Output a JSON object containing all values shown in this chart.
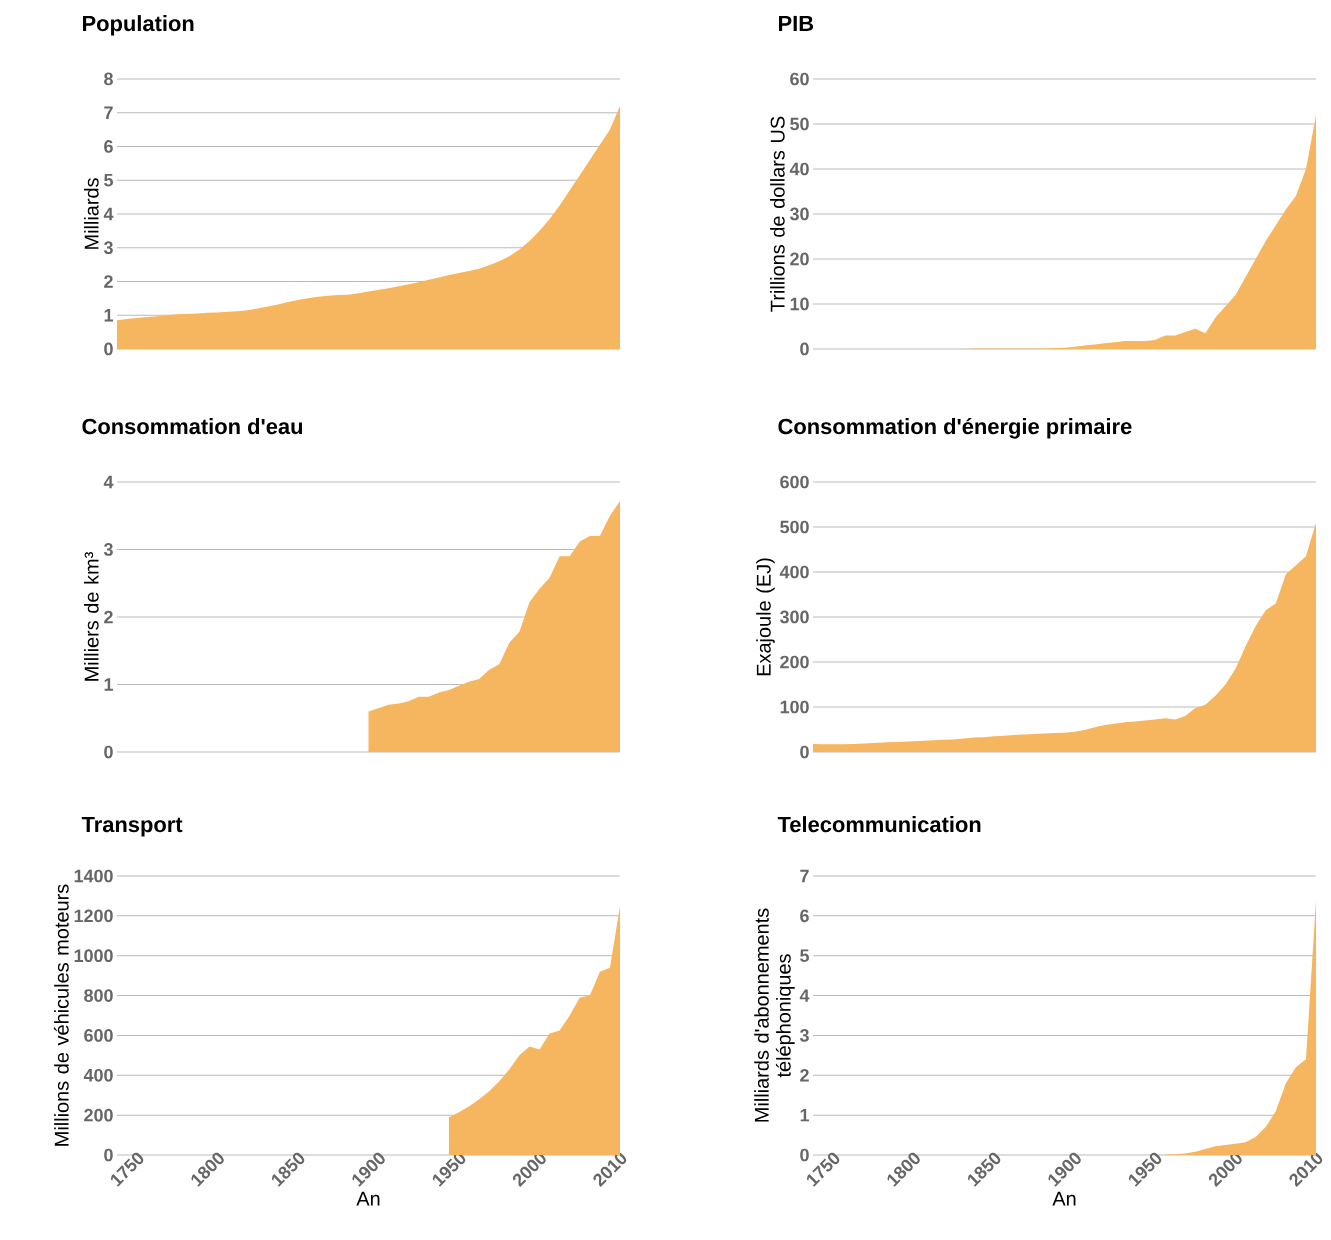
{
  "chart_data": [
    {
      "type": "area",
      "title": "Population",
      "ylabel": "Milliards",
      "tick_labels": "y",
      "grid": "y",
      "color": "#f6b55f",
      "ylim": [
        0,
        8
      ],
      "yticks": [
        0,
        1,
        2,
        3,
        4,
        5,
        6,
        7,
        8
      ],
      "categories": [
        null,
        "1750",
        null,
        null,
        null,
        null,
        null,
        null,
        null,
        "1800",
        null,
        null,
        null,
        null,
        null,
        null,
        null,
        "1850",
        null,
        null,
        null,
        null,
        null,
        null,
        null,
        "1900",
        null,
        null,
        null,
        null,
        null,
        null,
        null,
        "1950",
        null,
        null,
        null,
        null,
        null,
        null,
        null,
        "2000",
        null,
        null,
        null,
        null,
        null,
        null,
        null,
        "2010",
        null
      ],
      "values": [
        0.85,
        0.89,
        0.92,
        0.95,
        0.97,
        1.0,
        1.03,
        1.04,
        1.05,
        1.07,
        1.08,
        1.1,
        1.12,
        1.15,
        1.2,
        1.26,
        1.32,
        1.39,
        1.45,
        1.5,
        1.55,
        1.58,
        1.6,
        1.61,
        1.65,
        1.7,
        1.75,
        1.8,
        1.86,
        1.92,
        1.98,
        2.05,
        2.12,
        2.19,
        2.25,
        2.31,
        2.38,
        2.48,
        2.6,
        2.75,
        2.95,
        3.2,
        3.5,
        3.85,
        4.25,
        4.7,
        5.15,
        5.6,
        6.05,
        6.5,
        7.2
      ]
    },
    {
      "type": "area",
      "title": "PIB",
      "ylabel": "Trillions de dollars US",
      "tick_labels": "y",
      "grid": "y",
      "color": "#f6b55f",
      "ylim": [
        0,
        60
      ],
      "yticks": [
        0,
        10,
        20,
        30,
        40,
        50,
        60
      ],
      "categories": [
        null,
        "1750",
        null,
        null,
        null,
        null,
        null,
        null,
        null,
        "1800",
        null,
        null,
        null,
        null,
        null,
        null,
        null,
        "1850",
        null,
        null,
        null,
        null,
        null,
        null,
        null,
        "1900",
        null,
        null,
        null,
        null,
        null,
        null,
        null,
        "1950",
        null,
        null,
        null,
        null,
        null,
        null,
        null,
        "2000",
        null,
        null,
        null,
        null,
        null,
        null,
        null,
        "2010",
        null
      ],
      "values": [
        0,
        0,
        0,
        0,
        0,
        0,
        0,
        0,
        0,
        0,
        0,
        0,
        0,
        0,
        0,
        0,
        0.1,
        0.1,
        0.1,
        0.1,
        0.1,
        0.1,
        0.1,
        0.1,
        0.2,
        0.3,
        0.5,
        0.8,
        1.0,
        1.3,
        1.5,
        1.8,
        1.8,
        1.8,
        2.0,
        3.0,
        3.0,
        3.8,
        4.5,
        3.5,
        7,
        9.5,
        12,
        16,
        20,
        24,
        27.5,
        31,
        34,
        40,
        52
      ]
    },
    {
      "type": "area",
      "title": "Consommation d'eau",
      "ylabel": "Milliers de km³",
      "tick_labels": "y",
      "grid": "y",
      "color": "#f6b55f",
      "ylim": [
        0,
        4
      ],
      "yticks": [
        0,
        1,
        2,
        3,
        4
      ],
      "categories": [
        null,
        "1750",
        null,
        null,
        null,
        null,
        null,
        null,
        null,
        "1800",
        null,
        null,
        null,
        null,
        null,
        null,
        null,
        "1850",
        null,
        null,
        null,
        null,
        null,
        null,
        null,
        "1900",
        null,
        null,
        null,
        null,
        null,
        null,
        null,
        "1950",
        null,
        null,
        null,
        null,
        null,
        null,
        null,
        "2000",
        null,
        null,
        null,
        null,
        null,
        null,
        null,
        "2010",
        null
      ],
      "values": [
        null,
        null,
        null,
        null,
        null,
        null,
        null,
        null,
        null,
        null,
        null,
        null,
        null,
        null,
        null,
        null,
        null,
        null,
        null,
        null,
        null,
        null,
        null,
        null,
        null,
        0.6,
        0.65,
        0.7,
        0.72,
        0.75,
        0.82,
        0.82,
        0.88,
        0.92,
        0.98,
        1.04,
        1.08,
        1.22,
        1.3,
        1.62,
        1.78,
        2.22,
        2.42,
        2.58,
        2.9,
        2.9,
        3.12,
        3.2,
        3.2,
        3.5,
        3.72
      ]
    },
    {
      "type": "area",
      "title": "Consommation d'énergie primaire",
      "ylabel": "Exajoule (EJ)",
      "tick_labels": "y",
      "grid": "y",
      "color": "#f6b55f",
      "ylim": [
        0,
        600
      ],
      "yticks": [
        0,
        100,
        200,
        300,
        400,
        500,
        600
      ],
      "categories": [
        null,
        "1750",
        null,
        null,
        null,
        null,
        null,
        null,
        null,
        "1800",
        null,
        null,
        null,
        null,
        null,
        null,
        null,
        "1850",
        null,
        null,
        null,
        null,
        null,
        null,
        null,
        "1900",
        null,
        null,
        null,
        null,
        null,
        null,
        null,
        "1950",
        null,
        null,
        null,
        null,
        null,
        null,
        null,
        "2000",
        null,
        null,
        null,
        null,
        null,
        null,
        null,
        "2010",
        null
      ],
      "values": [
        18,
        17,
        17,
        17,
        18,
        19,
        20,
        21,
        22,
        23,
        24,
        25,
        26,
        27,
        28,
        30,
        32,
        33,
        35,
        36,
        38,
        39,
        40,
        41,
        42,
        43,
        45,
        49,
        55,
        60,
        63,
        66,
        68,
        70,
        72,
        75,
        72,
        80,
        98,
        105,
        125,
        150,
        185,
        235,
        280,
        315,
        330,
        395,
        415,
        435,
        510
      ]
    },
    {
      "type": "area",
      "title": "Transport",
      "ylabel": "Millions de véhicules moteurs",
      "xlabel": "An",
      "grid": "y",
      "color": "#f6b55f",
      "ylim": [
        0,
        1400
      ],
      "yticks": [
        0,
        200,
        400,
        600,
        800,
        1000,
        1200,
        1400
      ],
      "categories": [
        null,
        "1750",
        null,
        null,
        null,
        null,
        null,
        null,
        null,
        "1800",
        null,
        null,
        null,
        null,
        null,
        null,
        null,
        "1850",
        null,
        null,
        null,
        null,
        null,
        null,
        null,
        "1900",
        null,
        null,
        null,
        null,
        null,
        null,
        null,
        "1950",
        null,
        null,
        null,
        null,
        null,
        null,
        null,
        "2000",
        null,
        null,
        null,
        null,
        null,
        null,
        null,
        "2010",
        null
      ],
      "values": [
        null,
        null,
        null,
        null,
        null,
        null,
        null,
        null,
        null,
        null,
        null,
        null,
        null,
        null,
        null,
        null,
        null,
        null,
        null,
        null,
        null,
        null,
        null,
        null,
        null,
        null,
        null,
        null,
        null,
        null,
        null,
        null,
        null,
        190,
        215,
        245,
        280,
        320,
        370,
        430,
        500,
        545,
        530,
        610,
        625,
        700,
        790,
        800,
        920,
        940,
        1250
      ]
    },
    {
      "type": "area",
      "title": "Telecommunication",
      "ylabel": "Milliards d'abonnements téléphoniques",
      "xlabel": "An",
      "grid": "y",
      "color": "#f6b55f",
      "ylim": [
        0,
        7
      ],
      "yticks": [
        0,
        1,
        2,
        3,
        4,
        5,
        6,
        7
      ],
      "categories": [
        null,
        "1750",
        null,
        null,
        null,
        null,
        null,
        null,
        null,
        "1800",
        null,
        null,
        null,
        null,
        null,
        null,
        null,
        "1850",
        null,
        null,
        null,
        null,
        null,
        null,
        null,
        "1900",
        null,
        null,
        null,
        null,
        null,
        null,
        null,
        "1950",
        null,
        null,
        null,
        null,
        null,
        null,
        null,
        "2000",
        null,
        null,
        null,
        null,
        null,
        null,
        null,
        "2010",
        null
      ],
      "values": [
        null,
        null,
        null,
        null,
        null,
        null,
        null,
        null,
        null,
        null,
        null,
        null,
        null,
        null,
        null,
        null,
        null,
        null,
        null,
        null,
        null,
        null,
        null,
        null,
        null,
        null,
        null,
        null,
        null,
        null,
        null,
        null,
        null,
        null,
        null,
        0.01,
        0.02,
        0.04,
        0.08,
        0.15,
        0.22,
        0.25,
        0.28,
        0.32,
        0.45,
        0.7,
        1.1,
        1.8,
        2.2,
        2.4,
        6.4
      ]
    }
  ]
}
